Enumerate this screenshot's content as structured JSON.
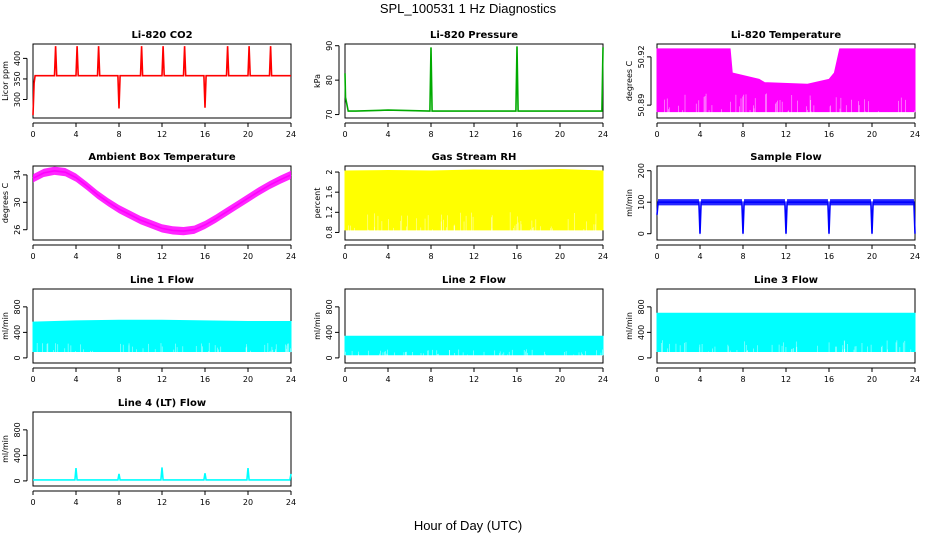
{
  "page": {
    "title": "SPL_100531  1 Hz Diagnostics",
    "xlabel": "Hour of Day (UTC)"
  },
  "chart_data": [
    {
      "type": "line",
      "title": "Li-820 CO2",
      "ylabel": "Licor ppm",
      "color": "#ff0000",
      "xlim": [
        0,
        24
      ],
      "ylim": [
        255,
        435
      ],
      "xticks": [
        0,
        4,
        8,
        12,
        16,
        20,
        24
      ],
      "yticks": [
        300,
        350,
        400
      ],
      "x": [
        0,
        0.1,
        0.2,
        1,
        2,
        2.1,
        2.2,
        3,
        4,
        4.1,
        4.2,
        5,
        6,
        6.1,
        6.2,
        7,
        7.9,
        8,
        8.1,
        9,
        10,
        10.1,
        10.2,
        11,
        12,
        12.1,
        12.2,
        13,
        14,
        14.1,
        14.2,
        15,
        15.9,
        16,
        16.1,
        17,
        18,
        18.1,
        18.2,
        19,
        20,
        20.1,
        20.2,
        21,
        22,
        22.1,
        22.2,
        23,
        24
      ],
      "y": [
        262,
        340,
        358,
        358,
        358,
        430,
        358,
        358,
        358,
        430,
        358,
        358,
        358,
        430,
        358,
        358,
        358,
        278,
        358,
        358,
        358,
        430,
        358,
        358,
        358,
        430,
        358,
        358,
        358,
        430,
        358,
        358,
        358,
        280,
        358,
        358,
        358,
        430,
        358,
        358,
        358,
        430,
        358,
        358,
        358,
        430,
        358,
        358,
        358
      ]
    },
    {
      "type": "line",
      "title": "Li-820 Pressure",
      "ylabel": "kPa",
      "color": "#00aa00",
      "xlim": [
        0,
        24
      ],
      "ylim": [
        69,
        90.5
      ],
      "xticks": [
        0,
        4,
        8,
        12,
        16,
        20,
        24
      ],
      "yticks": [
        70,
        80,
        90
      ],
      "x": [
        0,
        0.05,
        0.3,
        1,
        4,
        7.9,
        8,
        8.1,
        12,
        15.9,
        16,
        16.1,
        20,
        23.9,
        24
      ],
      "y": [
        82,
        75,
        71,
        71,
        71.3,
        71,
        89.5,
        71,
        71,
        71,
        89.8,
        71,
        71,
        71,
        89.5
      ]
    },
    {
      "type": "area",
      "title": "Li-820 Temperature",
      "ylabel": "degrees C",
      "color": "#ff00ff",
      "xlim": [
        0,
        24
      ],
      "ylim": [
        50.882,
        50.928
      ],
      "xticks": [
        0,
        4,
        8,
        12,
        16,
        20,
        24
      ],
      "yticks": [
        50.89,
        50.92
      ],
      "x": [
        0,
        6.8,
        7,
        9.5,
        10,
        14,
        16,
        16.5,
        17,
        24
      ],
      "y": [
        50.925,
        50.925,
        50.91,
        50.906,
        50.904,
        50.903,
        50.906,
        50.91,
        50.925,
        50.925
      ],
      "y_low": 50.886
    },
    {
      "type": "line",
      "title": "Ambient Box Temperature",
      "ylabel": "degrees C",
      "color": "#ff00ff",
      "xlim": [
        0,
        24
      ],
      "ylim": [
        24.5,
        35.3
      ],
      "xticks": [
        0,
        4,
        8,
        12,
        16,
        20,
        24
      ],
      "yticks": [
        26,
        30,
        34
      ],
      "x": [
        0,
        1,
        2,
        3,
        4,
        5,
        6,
        7,
        8,
        9,
        10,
        11,
        12,
        13,
        14,
        15,
        16,
        17,
        18,
        19,
        20,
        21,
        22,
        23,
        24
      ],
      "y": [
        33.5,
        34.3,
        34.6,
        34.4,
        33.6,
        32.4,
        31.1,
        30.0,
        29.0,
        28.2,
        27.4,
        26.8,
        26.2,
        25.9,
        25.8,
        26.0,
        26.7,
        27.6,
        28.6,
        29.6,
        30.6,
        31.6,
        32.5,
        33.3,
        34.0
      ],
      "band": 0.6
    },
    {
      "type": "area",
      "title": "Gas Stream RH",
      "ylabel": "percent",
      "color": "#ffff00",
      "xlim": [
        0,
        24
      ],
      "ylim": [
        0.65,
        2.12
      ],
      "xticks": [
        0,
        4,
        8,
        12,
        16,
        20,
        24
      ],
      "yticks": [
        0.8,
        1.2,
        1.6,
        2.0
      ],
      "x": [
        0,
        4,
        8,
        12,
        16,
        20,
        24
      ],
      "y": [
        2.02,
        2.03,
        2.02,
        2.04,
        2.03,
        2.05,
        2.02
      ],
      "y_low": 0.85
    },
    {
      "type": "line",
      "title": "Sample Flow",
      "ylabel": "ml/min",
      "color": "#0000ff",
      "xlim": [
        0,
        24
      ],
      "ylim": [
        -20,
        215
      ],
      "xticks": [
        0,
        4,
        8,
        12,
        16,
        20,
        24
      ],
      "yticks": [
        0,
        100,
        200
      ],
      "x": [
        0,
        0.1,
        3.9,
        4,
        4.1,
        7.9,
        8,
        8.1,
        11.9,
        12,
        12.1,
        15.9,
        16,
        16.1,
        19.9,
        20,
        20.1,
        23.9,
        24
      ],
      "y": [
        60,
        100,
        100,
        0,
        100,
        100,
        0,
        100,
        100,
        0,
        100,
        100,
        0,
        100,
        100,
        0,
        100,
        100,
        0
      ],
      "band": 10
    },
    {
      "type": "area",
      "title": "Line 1 Flow",
      "ylabel": "ml/min",
      "color": "#00ffff",
      "xlim": [
        0,
        24
      ],
      "ylim": [
        -80,
        1080
      ],
      "xticks": [
        0,
        4,
        8,
        12,
        16,
        20,
        24
      ],
      "yticks": [
        0,
        400,
        800
      ],
      "x": [
        0,
        4,
        8,
        12,
        16,
        20,
        24
      ],
      "y": [
        560,
        580,
        590,
        590,
        580,
        570,
        570
      ],
      "y_low": 100
    },
    {
      "type": "area",
      "title": "Line 2 Flow",
      "ylabel": "ml/min",
      "color": "#00ffff",
      "xlim": [
        0,
        24
      ],
      "ylim": [
        -80,
        1080
      ],
      "xticks": [
        0,
        4,
        8,
        12,
        16,
        20,
        24
      ],
      "yticks": [
        0,
        400,
        800
      ],
      "x": [
        0,
        4,
        8,
        12,
        16,
        20,
        24
      ],
      "y": [
        340,
        340,
        340,
        340,
        340,
        340,
        340
      ],
      "y_low": 50
    },
    {
      "type": "area",
      "title": "Line 3 Flow",
      "ylabel": "ml/min",
      "color": "#00ffff",
      "xlim": [
        0,
        24
      ],
      "ylim": [
        -80,
        1080
      ],
      "xticks": [
        0,
        4,
        8,
        12,
        16,
        20,
        24
      ],
      "yticks": [
        0,
        400,
        800
      ],
      "x": [
        0,
        4,
        8,
        12,
        16,
        20,
        24
      ],
      "y": [
        700,
        700,
        700,
        700,
        700,
        700,
        700
      ],
      "y_low": 100
    },
    {
      "type": "line",
      "title": "Line 4 (LT) Flow",
      "ylabel": "ml/min",
      "color": "#00ffff",
      "xlim": [
        0,
        24
      ],
      "ylim": [
        -80,
        1080
      ],
      "xticks": [
        0,
        4,
        8,
        12,
        16,
        20,
        24
      ],
      "yticks": [
        0,
        400,
        800
      ],
      "x": [
        0,
        3.9,
        4,
        4.1,
        7.9,
        8,
        8.1,
        11.9,
        12,
        12.1,
        15.9,
        16,
        16.1,
        19.9,
        20,
        20.1,
        23.9,
        24
      ],
      "y": [
        15,
        15,
        200,
        15,
        15,
        110,
        15,
        15,
        210,
        15,
        15,
        120,
        15,
        15,
        200,
        15,
        15,
        110
      ]
    }
  ]
}
